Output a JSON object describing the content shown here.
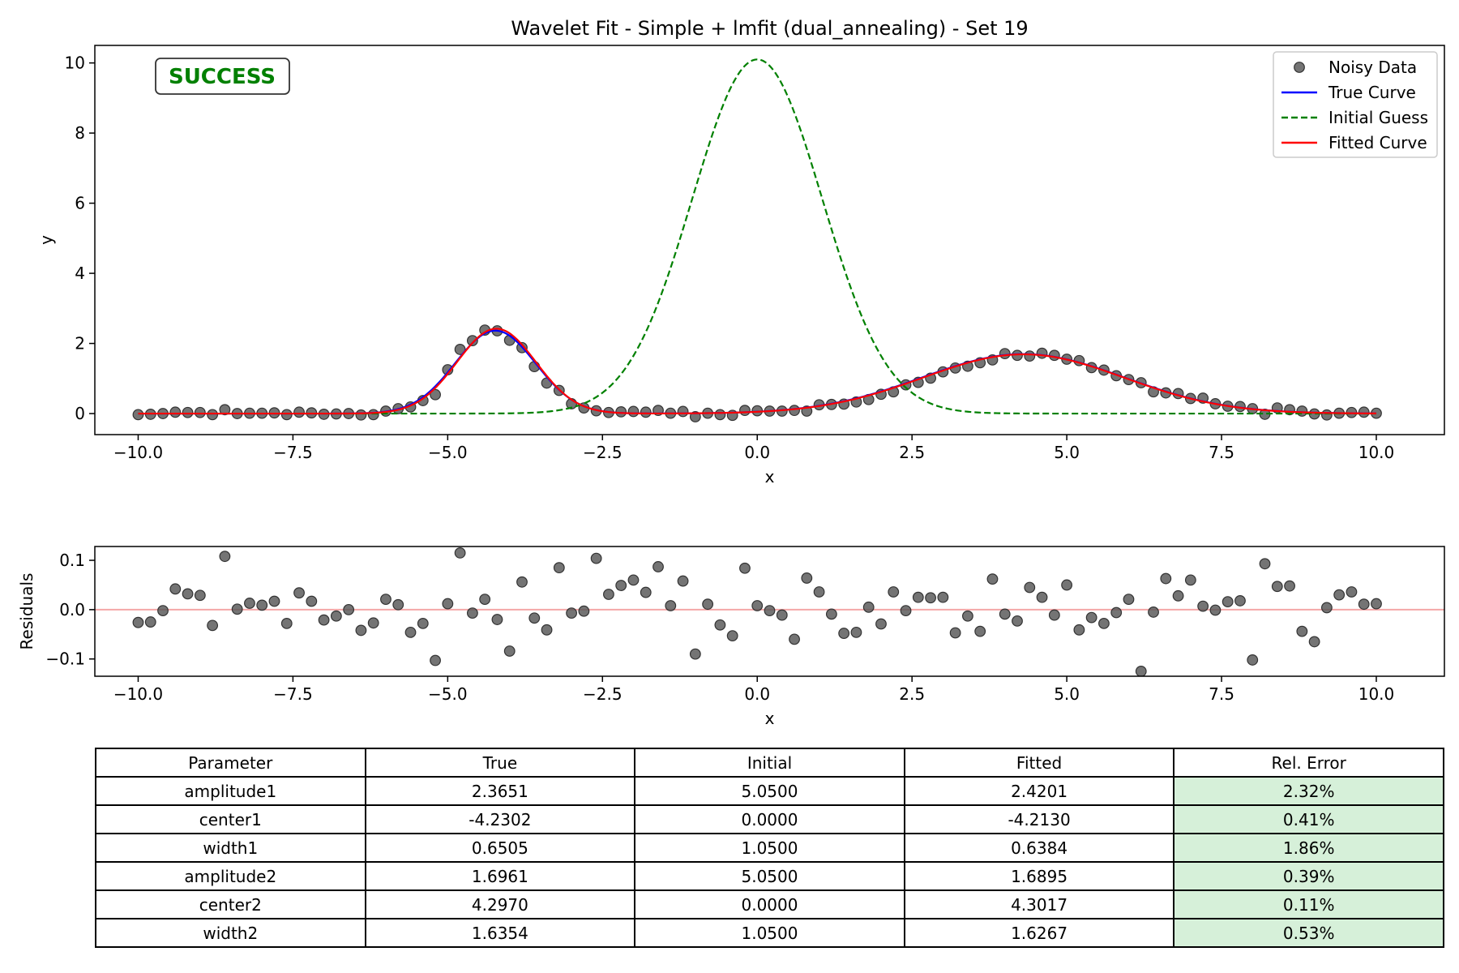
{
  "chart_data": [
    {
      "type": "scatter+line",
      "title": "Wavelet Fit - Simple + lmfit (dual_annealing) - Set 19",
      "xlabel": "x",
      "ylabel": "y",
      "xlim": [
        -10.7,
        11.1
      ],
      "ylim": [
        -0.6,
        10.5
      ],
      "xticks": [
        -10.0,
        -7.5,
        -5.0,
        -2.5,
        0.0,
        2.5,
        5.0,
        7.5,
        10.0
      ],
      "xtick_labels": [
        "−10.0",
        "−7.5",
        "−5.0",
        "−2.5",
        "0.0",
        "2.5",
        "5.0",
        "7.5",
        "10.0"
      ],
      "yticks": [
        0,
        2,
        4,
        6,
        8,
        10
      ],
      "ytick_labels": [
        "0",
        "2",
        "4",
        "6",
        "8",
        "10"
      ],
      "grid": false,
      "legend_position": "top-right",
      "badge": {
        "text": "SUCCESS",
        "color": "#008000"
      },
      "x": [
        -10.0,
        -9.8,
        -9.6,
        -9.4,
        -9.2,
        -9.0,
        -8.8,
        -8.6,
        -8.4,
        -8.2,
        -8.0,
        -7.8,
        -7.6,
        -7.4,
        -7.2,
        -7.0,
        -6.8,
        -6.6,
        -6.4,
        -6.2,
        -6.0,
        -5.8,
        -5.6,
        -5.4,
        -5.2,
        -5.0,
        -4.8,
        -4.6,
        -4.4,
        -4.2,
        -4.0,
        -3.8,
        -3.6,
        -3.4,
        -3.2,
        -3.0,
        -2.8,
        -2.6,
        -2.4,
        -2.2,
        -2.0,
        -1.8,
        -1.6,
        -1.4,
        -1.2,
        -1.0,
        -0.8,
        -0.6,
        -0.4,
        -0.2,
        0.0,
        0.2,
        0.4,
        0.6,
        0.8,
        1.0,
        1.2,
        1.4,
        1.6,
        1.8,
        2.0,
        2.2,
        2.4,
        2.6,
        2.8,
        3.0,
        3.2,
        3.4,
        3.6,
        3.8,
        4.0,
        4.2,
        4.4,
        4.6,
        4.8,
        5.0,
        5.2,
        5.4,
        5.6,
        5.8,
        6.0,
        6.2,
        6.4,
        6.6,
        6.8,
        7.0,
        7.2,
        7.4,
        7.6,
        7.8,
        8.0,
        8.2,
        8.4,
        8.6,
        8.8,
        9.0,
        9.2,
        9.4,
        9.6,
        9.8,
        10.0
      ],
      "series": [
        {
          "name": "Noisy Data",
          "kind": "scatter",
          "color": "#555555",
          "y": [
            -0.03,
            -0.02,
            0.0,
            0.04,
            0.03,
            0.03,
            -0.03,
            0.11,
            0.0,
            0.01,
            0.01,
            0.02,
            -0.03,
            0.04,
            0.02,
            -0.02,
            -0.01,
            0.0,
            -0.04,
            -0.03,
            0.07,
            0.14,
            0.19,
            0.37,
            0.54,
            1.25,
            1.83,
            2.08,
            2.38,
            2.36,
            2.09,
            1.88,
            1.34,
            0.87,
            0.66,
            0.28,
            0.16,
            0.08,
            0.03,
            0.05,
            0.06,
            0.04,
            0.09,
            0.01,
            0.06,
            -0.09,
            0.01,
            -0.03,
            -0.05,
            0.09,
            0.08,
            0.07,
            0.07,
            0.09,
            0.07,
            0.25,
            0.26,
            0.27,
            0.33,
            0.4,
            0.55,
            0.62,
            0.82,
            0.89,
            1.01,
            1.19,
            1.3,
            1.35,
            1.45,
            1.53,
            1.71,
            1.66,
            1.64,
            1.72,
            1.66,
            1.55,
            1.51,
            1.31,
            1.24,
            1.08,
            0.97,
            0.88,
            0.62,
            0.59,
            0.57,
            0.43,
            0.44,
            0.28,
            0.21,
            0.2,
            0.14,
            -0.02,
            0.16,
            0.11,
            0.07,
            -0.01,
            -0.04,
            0.01,
            0.03,
            0.04,
            0.01
          ]
        },
        {
          "name": "True Curve",
          "kind": "line",
          "color": "#0000ff",
          "style": "solid",
          "model": "gaussian2",
          "params": [
            2.3651,
            -4.2302,
            0.6505,
            1.6961,
            4.297,
            1.6354
          ]
        },
        {
          "name": "Initial Guess",
          "kind": "line",
          "color": "#008000",
          "style": "dashed",
          "model": "gaussian2",
          "params": [
            5.05,
            0.0,
            1.05,
            5.05,
            0.0,
            1.05
          ]
        },
        {
          "name": "Fitted Curve",
          "kind": "line",
          "color": "#ff0000",
          "style": "solid",
          "model": "gaussian2",
          "params": [
            2.4201,
            -4.213,
            0.6384,
            1.6895,
            4.3017,
            1.6267
          ]
        }
      ]
    },
    {
      "type": "scatter",
      "title": "",
      "xlabel": "x",
      "ylabel": "Residuals",
      "xlim": [
        -10.7,
        11.1
      ],
      "ylim": [
        -0.135,
        0.128
      ],
      "xticks": [
        -10.0,
        -7.5,
        -5.0,
        -2.5,
        0.0,
        2.5,
        5.0,
        7.5,
        10.0
      ],
      "xtick_labels": [
        "−10.0",
        "−7.5",
        "−5.0",
        "−2.5",
        "0.0",
        "2.5",
        "5.0",
        "7.5",
        "10.0"
      ],
      "yticks": [
        -0.1,
        0.0,
        0.1
      ],
      "ytick_labels": [
        "−0.1",
        "0.0",
        "0.1"
      ],
      "zero_line_color": "#f4a7a7",
      "grid": false,
      "series": [
        {
          "name": "",
          "kind": "scatter",
          "color": "#555555",
          "y": [
            -0.026,
            -0.025,
            -0.002,
            0.042,
            0.032,
            0.029,
            -0.032,
            0.108,
            0.001,
            0.013,
            0.009,
            0.017,
            -0.028,
            0.034,
            0.017,
            -0.021,
            -0.013,
            0.0,
            -0.042,
            -0.027,
            0.021,
            0.01,
            -0.046,
            -0.028,
            -0.103,
            0.012,
            0.115,
            -0.007,
            0.021,
            -0.02,
            -0.084,
            0.056,
            -0.017,
            -0.041,
            0.085,
            -0.007,
            -0.003,
            0.104,
            0.031,
            0.049,
            0.06,
            0.035,
            0.087,
            0.008,
            0.058,
            -0.09,
            0.011,
            -0.031,
            -0.053,
            0.084,
            0.008,
            -0.002,
            -0.011,
            -0.06,
            0.064,
            0.036,
            -0.009,
            -0.048,
            -0.046,
            0.005,
            -0.029,
            0.036,
            -0.002,
            0.025,
            0.024,
            0.025,
            -0.047,
            -0.013,
            -0.044,
            0.062,
            -0.009,
            -0.023,
            0.045,
            0.025,
            -0.011,
            0.05,
            -0.041,
            -0.016,
            -0.028,
            -0.006,
            0.021,
            -0.125,
            -0.005,
            0.063,
            0.028,
            0.06,
            0.007,
            -0.001,
            0.016,
            0.018,
            -0.102,
            0.093,
            0.047,
            0.048,
            -0.044,
            -0.065,
            0.004,
            0.03,
            0.036,
            0.011,
            0.012
          ]
        }
      ]
    }
  ],
  "table": {
    "headers": [
      "Parameter",
      "True",
      "Initial",
      "Fitted",
      "Rel. Error"
    ],
    "rows": [
      [
        "amplitude1",
        "2.3651",
        "5.0500",
        "2.4201",
        "2.32%"
      ],
      [
        "center1",
        "-4.2302",
        "0.0000",
        "-4.2130",
        "0.41%"
      ],
      [
        "width1",
        "0.6505",
        "1.0500",
        "0.6384",
        "1.86%"
      ],
      [
        "amplitude2",
        "1.6961",
        "5.0500",
        "1.6895",
        "0.39%"
      ],
      [
        "center2",
        "4.2970",
        "0.0000",
        "4.3017",
        "0.11%"
      ],
      [
        "width2",
        "1.6354",
        "1.0500",
        "1.6267",
        "0.53%"
      ]
    ],
    "error_cell_color": "#d6f0d9"
  }
}
